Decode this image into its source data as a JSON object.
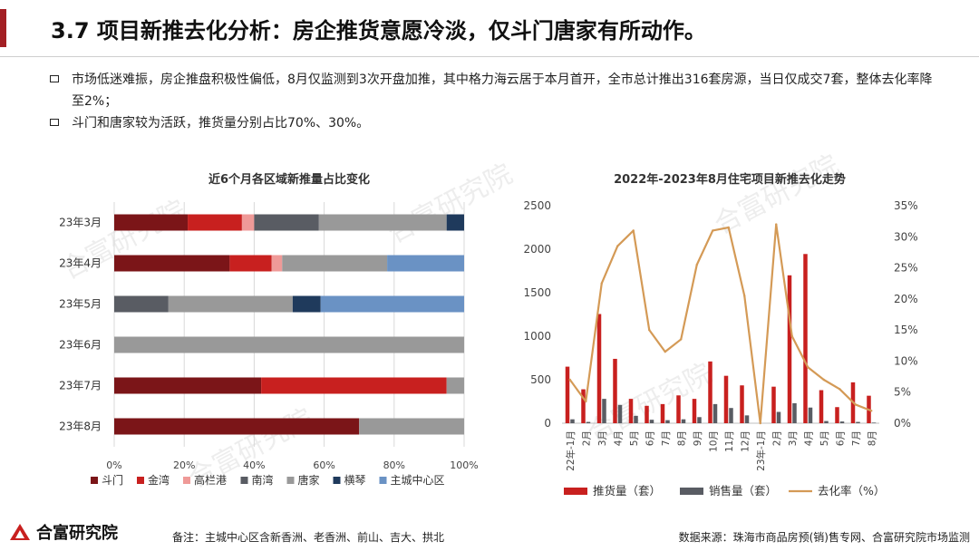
{
  "header": {
    "title": "3.7 项目新推去化分析：房企推货意愿冷淡，仅斗门唐家有所动作。"
  },
  "bullets": [
    "市场低迷难振，房企推盘积极性偏低，8月仅监测到3次开盘加推，其中格力海云居于本月首开，全市总计推出316套房源，当日仅成交7套，整体去化率降至2%；",
    "斗门和唐家较为活跃，推货量分别占比70%、30%。"
  ],
  "watermark_text": "合富研究院",
  "footer": {
    "logo_text": "合富研究院",
    "note": "备注：主城中心区含新香洲、老香洲、前山、吉大、拱北",
    "source": "数据来源：珠海市商品房预(销)售专网、合富研究院市场监测"
  },
  "chart_data": [
    {
      "type": "bar",
      "orientation": "horizontal-stacked-100",
      "title": "近6个月各区域新推量占比变化",
      "categories": [
        "23年3月",
        "23年4月",
        "23年5月",
        "23年6月",
        "23年7月",
        "23年8月"
      ],
      "x_ticks": [
        "0%",
        "20%",
        "40%",
        "60%",
        "80%",
        "100%"
      ],
      "xlim": [
        0,
        100
      ],
      "legend_position": "bottom",
      "series": [
        {
          "name": "斗门",
          "color": "#7b1518",
          "values": [
            21,
            33,
            0,
            0,
            42,
            70
          ]
        },
        {
          "name": "金湾",
          "color": "#c8201f",
          "values": [
            15.5,
            12,
            0,
            0,
            53,
            0
          ]
        },
        {
          "name": "高栏港",
          "color": "#ef9a98",
          "values": [
            3.5,
            3,
            0,
            0,
            0,
            0
          ]
        },
        {
          "name": "南湾",
          "color": "#595c63",
          "values": [
            18.5,
            0,
            15.5,
            0,
            0,
            0
          ]
        },
        {
          "name": "唐家",
          "color": "#999999",
          "values": [
            36.5,
            30,
            35.5,
            100,
            5,
            30
          ]
        },
        {
          "name": "横琴",
          "color": "#1f3a5c",
          "values": [
            5,
            0,
            8,
            0,
            0,
            0
          ]
        },
        {
          "name": "主城中心区",
          "color": "#6a92c4",
          "values": [
            0,
            22,
            41,
            0,
            0,
            0
          ]
        }
      ]
    },
    {
      "type": "bar",
      "combo": "bar+line",
      "title": "2022年-2023年8月住宅项目新推去化走势",
      "categories": [
        "22年-1月",
        "2月",
        "3月",
        "4月",
        "5月",
        "6月",
        "7月",
        "8月",
        "9月",
        "10月",
        "11月",
        "12月",
        "23年-1月",
        "2月",
        "3月",
        "4月",
        "5月",
        "6月",
        "7月",
        "8月"
      ],
      "y_left_ticks": [
        "0",
        "500",
        "1000",
        "1500",
        "2000",
        "2500"
      ],
      "ylim_left": [
        0,
        2500
      ],
      "y_right_ticks": [
        "0%",
        "5%",
        "10%",
        "15%",
        "20%",
        "25%",
        "30%",
        "35%"
      ],
      "ylim_right": [
        0,
        35
      ],
      "legend_position": "bottom",
      "series": [
        {
          "name": "推货量（套）",
          "kind": "bar",
          "axis": "left",
          "color": "#c8201f",
          "values": [
            650,
            390,
            1255,
            740,
            280,
            200,
            220,
            320,
            280,
            710,
            545,
            435,
            0,
            420,
            1700,
            1945,
            380,
            185,
            470,
            316
          ]
        },
        {
          "name": "销售量（套）",
          "kind": "bar",
          "axis": "left",
          "color": "#595c63",
          "values": [
            45,
            15,
            280,
            210,
            85,
            40,
            35,
            45,
            70,
            220,
            175,
            90,
            0,
            130,
            230,
            180,
            25,
            20,
            15,
            7
          ]
        },
        {
          "name": "去化率（%）",
          "kind": "line",
          "axis": "right",
          "color": "#d49a56",
          "values": [
            7,
            3.5,
            22.5,
            28.5,
            31,
            15,
            11.5,
            13.5,
            25.5,
            31,
            31.5,
            20.5,
            0,
            32,
            14,
            9,
            7,
            5.5,
            3,
            2
          ]
        }
      ]
    }
  ]
}
